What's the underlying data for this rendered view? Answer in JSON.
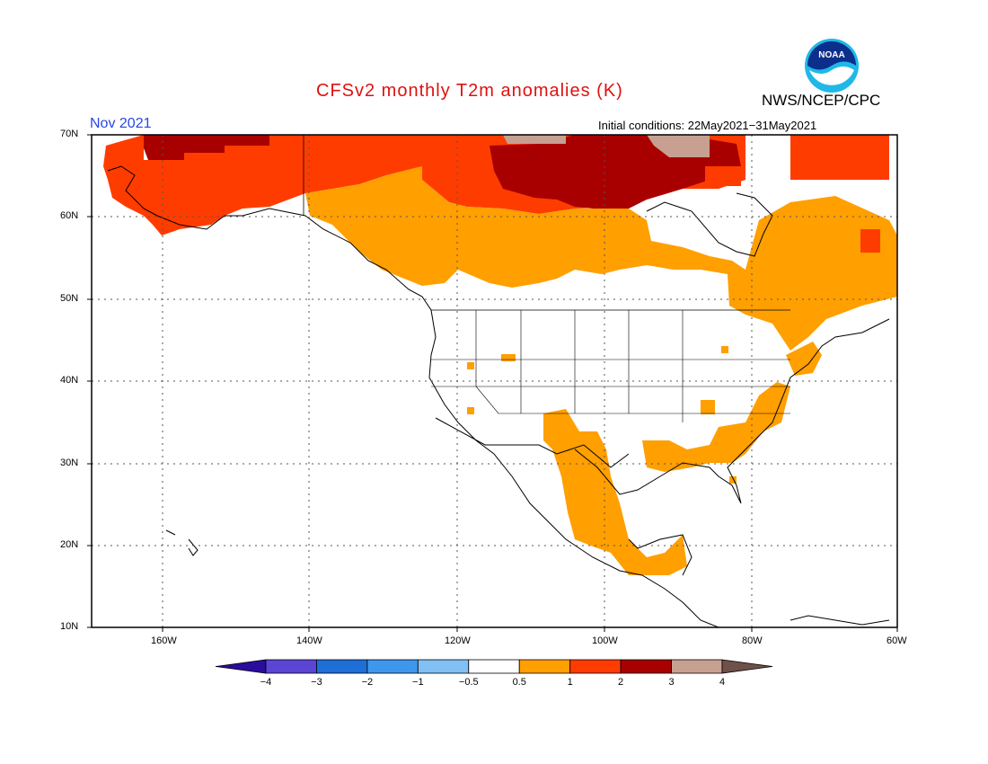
{
  "title": "CFSv2 monthly T2m anomalies (K)",
  "agency": "NWS/NCEP/CPC",
  "logo_text": "NOAA",
  "valid_month": "Nov 2021",
  "initial_conditions": "Initial conditions: 22May2021−31May2021",
  "lat_labels": [
    "70N",
    "60N",
    "50N",
    "40N",
    "30N",
    "20N",
    "10N"
  ],
  "lon_labels": [
    "160W",
    "140W",
    "120W",
    "100W",
    "80W",
    "60W"
  ],
  "colorbar": {
    "labels": [
      "−4",
      "−3",
      "−2",
      "−1",
      "−0.5",
      "0.5",
      "1",
      "2",
      "3",
      "4"
    ],
    "colors": [
      "#2a0c9e",
      "#5a45d4",
      "#1e6fd8",
      "#3f96ee",
      "#82c0f4",
      "#ffffff",
      "#ff9f00",
      "#ff3c00",
      "#a80000",
      "#c8a092",
      "#70504a"
    ]
  },
  "legend_colors": {
    "anom_05_1": "#ff9f00",
    "anom_1_2": "#ff3c00",
    "anom_2_3": "#a80000",
    "anom_3_4": "#c8a092"
  }
}
